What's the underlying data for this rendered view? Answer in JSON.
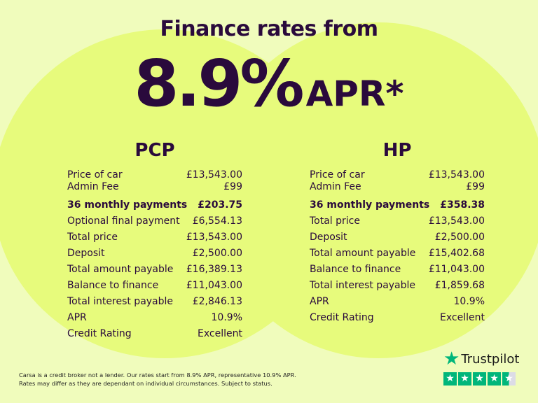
{
  "heading": "Finance rates from",
  "rate": "8.9%",
  "rate_suffix": "APR*",
  "pcp": {
    "title": "PCP",
    "rows": [
      [
        "Price of car",
        "£13,543.00"
      ],
      [
        "Admin Fee",
        "£99"
      ],
      [
        "36 monthly payments",
        "£203.75"
      ],
      [
        "Optional final payment",
        "£6,554.13"
      ],
      [
        "Total price",
        "£13,543.00"
      ],
      [
        "Deposit",
        "£2,500.00"
      ],
      [
        "Total amount payable",
        "£16,389.13"
      ],
      [
        "Balance to finance",
        "£11,043.00"
      ],
      [
        "Total interest payable",
        "£2,846.13"
      ],
      [
        "APR",
        "10.9%"
      ],
      [
        "Credit Rating",
        "Excellent"
      ]
    ]
  },
  "hp": {
    "title": "HP",
    "rows": [
      [
        "Price of car",
        "£13,543.00"
      ],
      [
        "Admin Fee",
        "£99"
      ],
      [
        "36 monthly payments",
        "£358.38"
      ],
      [
        "Total price",
        "£13,543.00"
      ],
      [
        "Deposit",
        "£2,500.00"
      ],
      [
        "Total amount payable",
        "£15,402.68"
      ],
      [
        "Balance to finance",
        "£11,043.00"
      ],
      [
        "Total interest payable",
        "£1,859.68"
      ],
      [
        "APR",
        "10.9%"
      ],
      [
        "Credit Rating",
        "Excellent"
      ]
    ]
  },
  "disclaimer": [
    "Carsa is a credit broker not a lender. Our rates start from 8.9% APR, representative 10.9% APR.",
    "Rates may differ as they are dependant on individual circumstances. Subject to status."
  ],
  "trustpilot": {
    "name": "Trustpilot",
    "rating_stars": 4.5,
    "color": "#00b67a"
  },
  "colors": {
    "text": "#2a0a3c",
    "circle": "#e7fb7c",
    "background": "#f0fcbc"
  }
}
